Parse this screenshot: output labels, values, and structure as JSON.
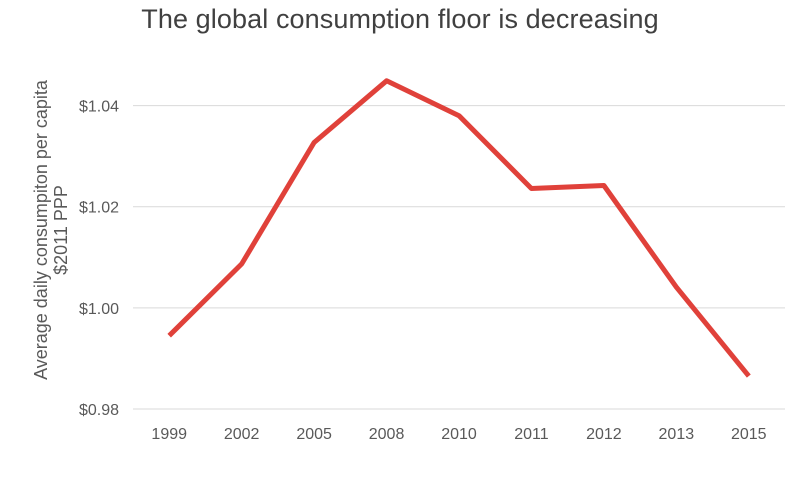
{
  "chart_data": {
    "type": "line",
    "title": "The global consumption floor is decreasing",
    "xlabel": "",
    "ylabel_lines": [
      "Average daily consumpiton per capita",
      "$2011 PPP"
    ],
    "categories": [
      "1999",
      "2002",
      "2005",
      "2008",
      "2010",
      "2011",
      "2012",
      "2013",
      "2015"
    ],
    "series": [
      {
        "values": [
          0.9945,
          1.0087,
          1.0327,
          1.0449,
          1.038,
          1.0236,
          1.0242,
          1.0041,
          0.9865
        ]
      }
    ],
    "ylim": [
      0.98,
      1.05
    ],
    "yticks": [
      {
        "value": 0.98,
        "label": "$0.98"
      },
      {
        "value": 1.0,
        "label": "$1.00"
      },
      {
        "value": 1.02,
        "label": "$1.02"
      },
      {
        "value": 1.04,
        "label": "$1.04"
      }
    ],
    "grid": true,
    "legend": "none",
    "line_color": "#e0413a",
    "grid_color": "#d9d9d9",
    "text_color": "#595959"
  }
}
